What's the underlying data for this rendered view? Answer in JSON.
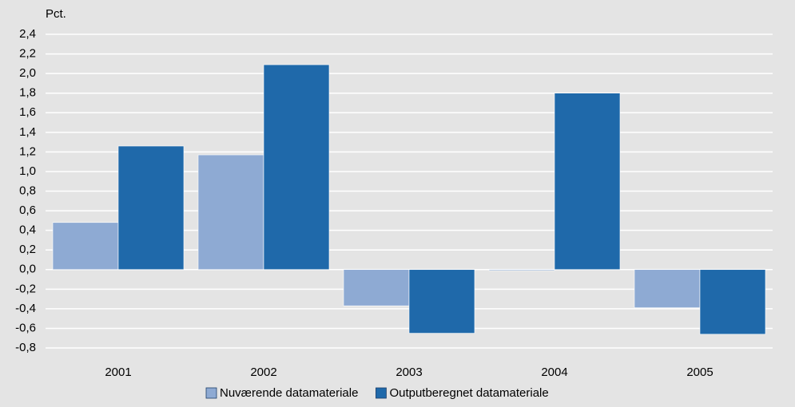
{
  "chart_data": {
    "type": "bar",
    "y_label": "Pct.",
    "categories": [
      "2001",
      "2002",
      "2003",
      "2004",
      "2005"
    ],
    "series": [
      {
        "name": "Nuværende datamateriale",
        "color": "#8eaad3",
        "values": [
          0.48,
          1.17,
          -0.37,
          -0.01,
          -0.39
        ]
      },
      {
        "name": "Outputberegnet datamateriale",
        "color": "#1f69aa",
        "values": [
          1.26,
          2.09,
          -0.65,
          1.8,
          -0.66
        ]
      }
    ],
    "ylim": [
      -0.8,
      2.4
    ],
    "yticks": [
      {
        "value": -0.8,
        "label": "-0,8"
      },
      {
        "value": -0.6,
        "label": "-0,6"
      },
      {
        "value": -0.4,
        "label": "-0,4"
      },
      {
        "value": -0.2,
        "label": "-0,2"
      },
      {
        "value": 0.0,
        "label": "0,0"
      },
      {
        "value": 0.2,
        "label": "0,2"
      },
      {
        "value": 0.4,
        "label": "0,4"
      },
      {
        "value": 0.6,
        "label": "0,6"
      },
      {
        "value": 0.8,
        "label": "0,8"
      },
      {
        "value": 1.0,
        "label": "1,0"
      },
      {
        "value": 1.2,
        "label": "1,2"
      },
      {
        "value": 1.4,
        "label": "1,4"
      },
      {
        "value": 1.6,
        "label": "1,6"
      },
      {
        "value": 1.8,
        "label": "1,8"
      },
      {
        "value": 2.0,
        "label": "2,0"
      },
      {
        "value": 2.2,
        "label": "2,2"
      },
      {
        "value": 2.4,
        "label": "2,4"
      }
    ],
    "grid": true
  }
}
